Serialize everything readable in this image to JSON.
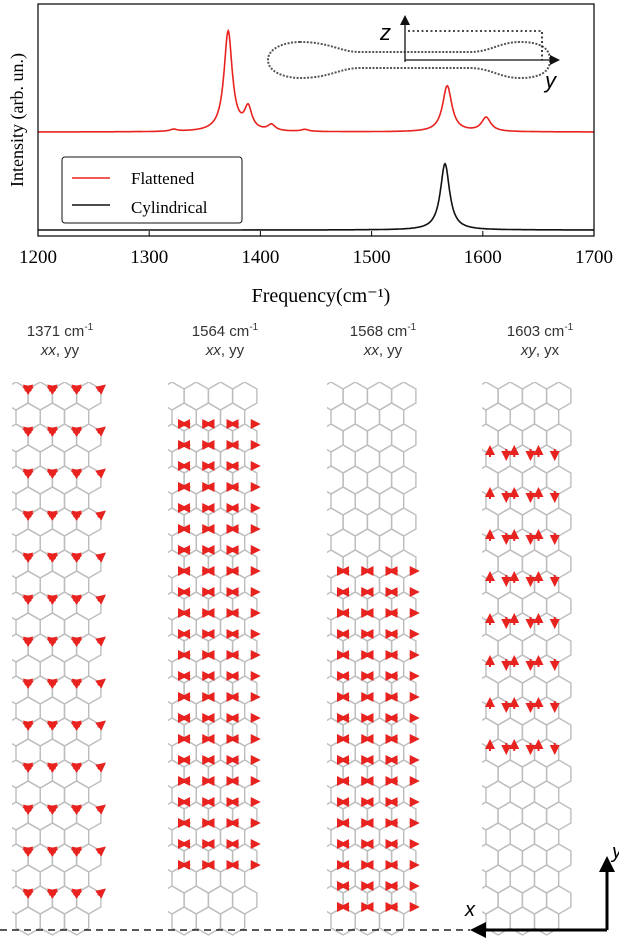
{
  "chart_data": {
    "type": "line",
    "title": "",
    "xlabel": "Frequency(cm⁻¹)",
    "ylabel": "Intensity (arb. un.)",
    "xlim": [
      1200,
      1700
    ],
    "x_ticks": [
      "1200",
      "1300",
      "1400",
      "1500",
      "1600",
      "1700"
    ],
    "legend_position": "lower-left",
    "series": [
      {
        "name": "Flattened",
        "color": "#e8231f",
        "peaks": [
          {
            "center": 1371,
            "height": 1.0,
            "width": 4.5
          },
          {
            "center": 1389,
            "height": 0.22,
            "width": 4
          },
          {
            "center": 1410,
            "height": 0.06,
            "width": 4
          },
          {
            "center": 1322,
            "height": 0.02,
            "width": 4
          },
          {
            "center": 1440,
            "height": 0.02,
            "width": 4
          },
          {
            "center": 1568,
            "height": 0.46,
            "width": 5
          },
          {
            "center": 1603,
            "height": 0.14,
            "width": 5
          }
        ]
      },
      {
        "name": "Cylindrical",
        "color": "#111111",
        "peaks": [
          {
            "center": 1566,
            "height": 0.78,
            "width": 5
          }
        ]
      }
    ]
  },
  "inset": {
    "z_label": "z",
    "y_label": "y"
  },
  "modes": [
    {
      "freq": "1371 cm",
      "sup": "-1",
      "sym1": "xx",
      "sym2": ", yy",
      "pattern": "ring"
    },
    {
      "freq": "1564 cm",
      "sup": "-1",
      "sym1": "xx",
      "sym2": ", yy",
      "pattern": "stretch-top"
    },
    {
      "freq": "1568 cm",
      "sup": "-1",
      "sym1": "xx",
      "sym2": ", yy",
      "pattern": "stretch-bottom"
    },
    {
      "freq": "1603 cm",
      "sup": "-1",
      "sym1": "xy",
      "sym2": ", yx",
      "pattern": "shear"
    }
  ],
  "axes_inset": {
    "x_label": "x",
    "y_label": "y"
  },
  "colors": {
    "accent": "#e8231f",
    "lattice": "#bdbdbd"
  }
}
